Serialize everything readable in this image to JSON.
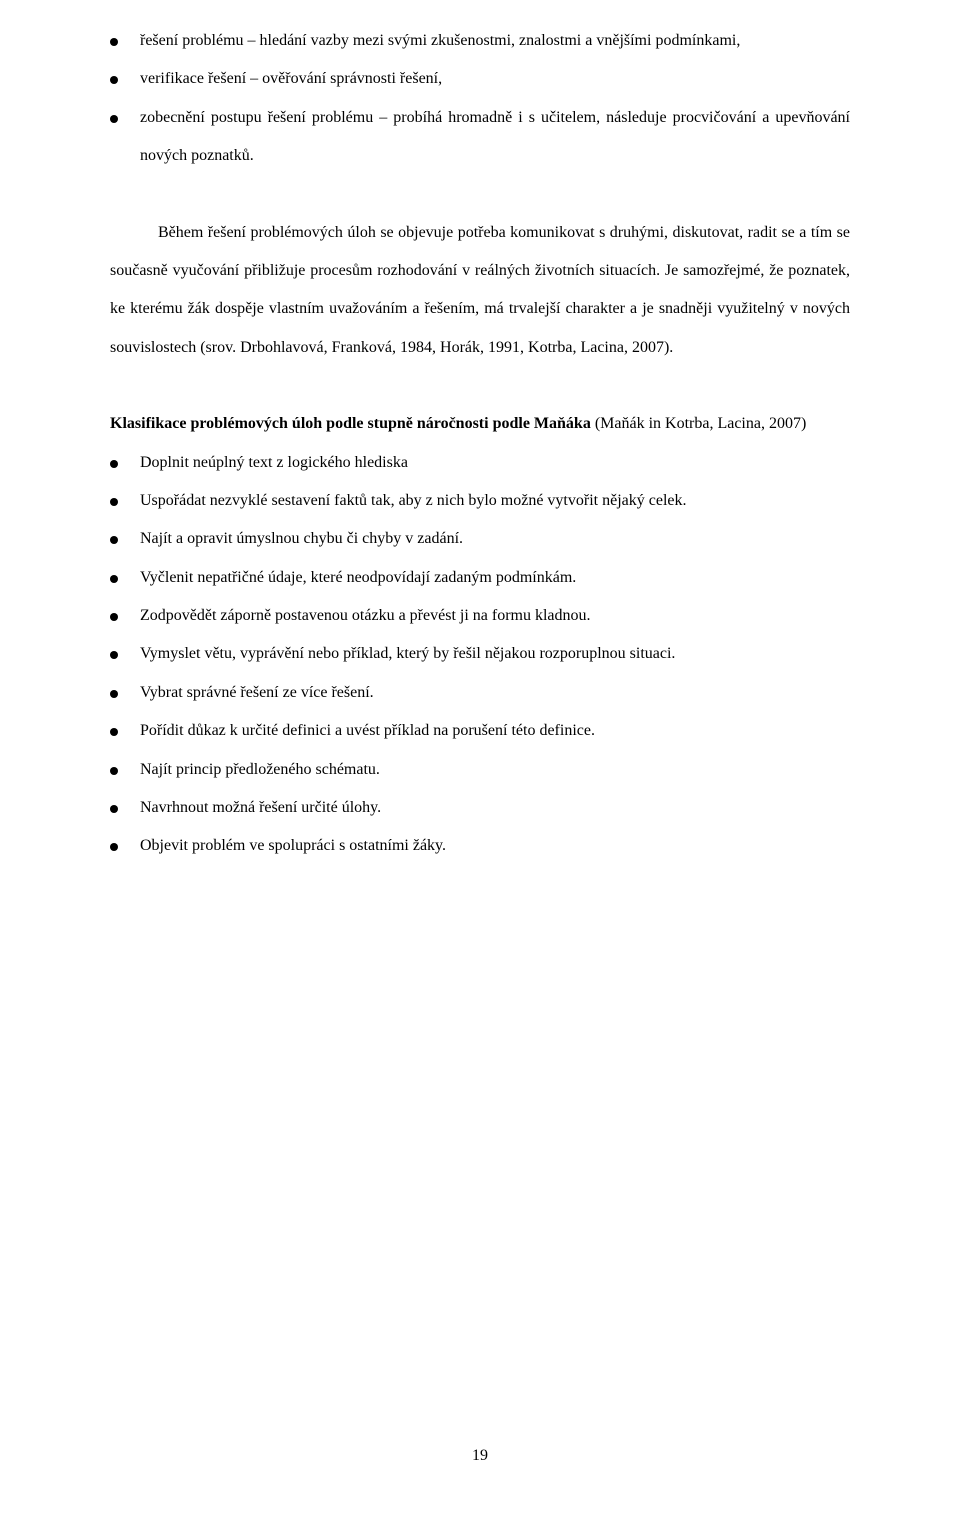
{
  "top_bullets": [
    "řešení problému – hledání vazby mezi svými zkušenostmi, znalostmi a vnějšími podmínkami,",
    "verifikace řešení – ověřování správnosti řešení,",
    "zobecnění postupu řešení problému – probíhá hromadně i s učitelem, následuje procvičování a upevňování nových poznatků."
  ],
  "paragraph": "Během řešení problémových úloh se objevuje potřeba komunikovat s druhými, diskutovat, radit se a tím se současně vyučování přibližuje procesům rozhodování v reálných životních situacích. Je samozřejmé, že poznatek, ke kterému žák dospěje vlastním uvažováním a řešením, má trvalejší charakter a je snadněji využitelný v nových souvislostech (srov. Drbohlavová, Franková, 1984, Horák, 1991, Kotrba, Lacina, 2007).",
  "heading_bold": "Klasifikace problémových úloh podle stupně náročnosti podle Maňáka",
  "heading_rest": " (Maňák in Kotrba, Lacina, 2007)",
  "second_bullets": [
    "Doplnit neúplný text z logického hlediska",
    "Uspořádat nezvyklé sestavení faktů tak, aby z nich bylo možné vytvořit nějaký celek.",
    "Najít a opravit úmyslnou chybu či chyby v zadání.",
    "Vyčlenit nepatřičné údaje, které neodpovídají zadaným podmínkám.",
    "Zodpovědět záporně postavenou otázku a převést ji na formu kladnou.",
    "Vymyslet větu, vyprávění nebo příklad, který by řešil nějakou rozporuplnou situaci.",
    "Vybrat správné řešení ze více řešení.",
    "Pořídit důkaz k určité definici a uvést příklad na porušení této definice.",
    "Najít princip předloženého schématu.",
    "Navrhnout možná řešení určité úlohy.",
    "Objevit problém ve spolupráci s ostatními žáky."
  ],
  "page_number": "19"
}
